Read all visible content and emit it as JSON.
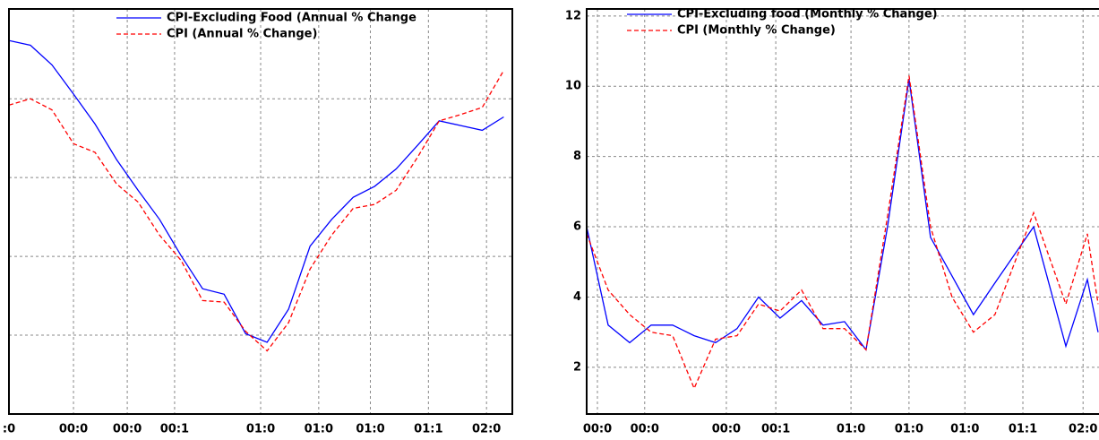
{
  "chart_data": [
    {
      "type": "line",
      "legend": "upper center",
      "grid": true,
      "x": [
        0,
        1,
        2,
        3,
        4,
        5,
        6,
        7,
        8,
        9,
        10,
        11,
        12,
        13,
        14,
        15,
        16,
        17,
        18,
        19,
        20,
        21,
        22,
        23
      ],
      "xlim": [
        0,
        23.4
      ],
      "xticks": [
        {
          "value": 0,
          "label": ":0"
        },
        {
          "value": 3,
          "label": "00:0"
        },
        {
          "value": 5.5,
          "label": "00:0"
        },
        {
          "value": 7.7,
          "label": "00:1"
        },
        {
          "value": 11.7,
          "label": "01:0"
        },
        {
          "value": 14.4,
          "label": "01:0"
        },
        {
          "value": 16.8,
          "label": "01:0"
        },
        {
          "value": 19.5,
          "label": "01:1"
        },
        {
          "value": 22.2,
          "label": "02:0"
        }
      ],
      "ylim": [
        0,
        5.14
      ],
      "yticks": [
        1,
        2,
        3,
        4
      ],
      "series": [
        {
          "name": "CPI-Excluding Food (Annual % Change",
          "color": "#0000ff",
          "dash": false,
          "values": [
            4.74,
            4.68,
            4.43,
            4.06,
            3.68,
            3.23,
            2.84,
            2.47,
            2.01,
            1.59,
            1.52,
            1.02,
            0.91,
            1.33,
            2.13,
            2.47,
            2.75,
            2.89,
            3.11,
            3.41,
            3.72,
            3.66,
            3.6,
            3.77
          ]
        },
        {
          "name": "CPI (Annual % Change)",
          "color": "#ff0000",
          "dash": true,
          "values": [
            3.92,
            4.0,
            3.86,
            3.43,
            3.32,
            2.92,
            2.69,
            2.27,
            1.95,
            1.44,
            1.42,
            1.05,
            0.8,
            1.16,
            1.84,
            2.27,
            2.61,
            2.66,
            2.84,
            3.26,
            3.72,
            3.8,
            3.89,
            4.36
          ]
        }
      ]
    },
    {
      "type": "line",
      "legend": "upper left",
      "grid": true,
      "x": [
        0,
        1,
        2,
        3,
        4,
        5,
        6,
        7,
        8,
        9,
        10,
        11,
        12,
        13,
        14,
        15,
        16,
        17,
        18,
        19,
        20.8,
        22.3,
        23.3,
        23.8
      ],
      "xlim": [
        0,
        23.8
      ],
      "xticks": [
        {
          "value": 0.5,
          "label": "00:0"
        },
        {
          "value": 2.7,
          "label": "00:0"
        },
        {
          "value": 6.5,
          "label": "00:0"
        },
        {
          "value": 8.8,
          "label": "00:1"
        },
        {
          "value": 12.3,
          "label": "01:0"
        },
        {
          "value": 15,
          "label": "01:0"
        },
        {
          "value": 17.6,
          "label": "01:0"
        },
        {
          "value": 20.3,
          "label": "01:1"
        },
        {
          "value": 23.1,
          "label": "02:0"
        }
      ],
      "ylim": [
        0.67,
        12.2
      ],
      "yticks": [
        2,
        4,
        6,
        8,
        10,
        12
      ],
      "series": [
        {
          "name": "CPI-Excluding food (Monthly % Change)",
          "color": "#0000ff",
          "dash": false,
          "values": [
            6.0,
            3.2,
            2.7,
            3.2,
            3.2,
            2.9,
            2.7,
            3.1,
            4.0,
            3.4,
            3.9,
            3.2,
            3.3,
            2.5,
            6.0,
            10.2,
            5.7,
            4.6,
            3.5,
            4.4,
            6.0,
            2.6,
            4.5,
            3.0
          ]
        },
        {
          "name": "CPI (Monthly % Change)",
          "color": "#ff0000",
          "dash": true,
          "values": [
            5.8,
            4.2,
            3.5,
            3.0,
            2.9,
            1.4,
            2.8,
            2.9,
            3.8,
            3.6,
            4.2,
            3.1,
            3.1,
            2.5,
            6.3,
            10.3,
            6.0,
            4.0,
            3.0,
            3.5,
            6.4,
            3.8,
            5.8,
            3.8
          ]
        }
      ]
    }
  ]
}
